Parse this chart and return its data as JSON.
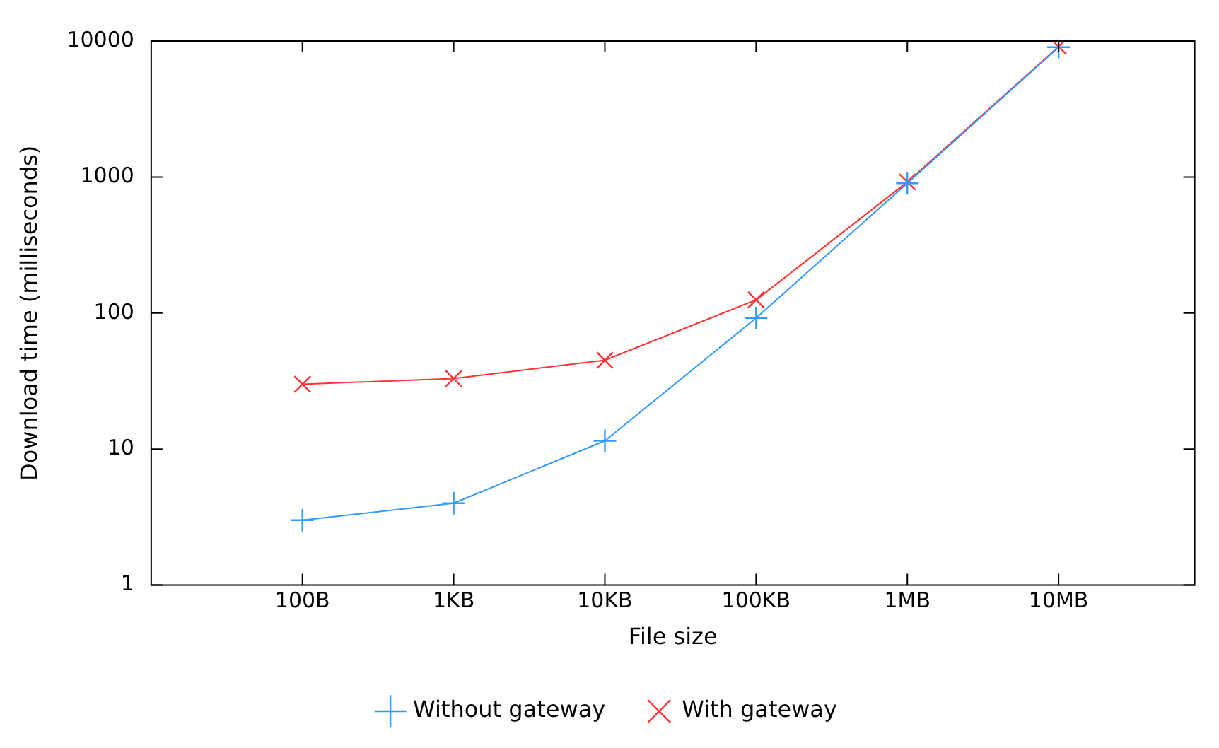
{
  "chart_data": {
    "type": "line",
    "xlabel": "File size",
    "ylabel": "Download time (milliseconds)",
    "categories": [
      "100B",
      "1KB",
      "10KB",
      "100KB",
      "1MB",
      "10MB"
    ],
    "series": [
      {
        "name": "Without gateway",
        "color": "#3399ff",
        "marker": "cross",
        "values": [
          3,
          4,
          11.5,
          92,
          900,
          9000
        ]
      },
      {
        "name": "With gateway",
        "color": "#ff3333",
        "marker": "x",
        "values": [
          30,
          33,
          45,
          125,
          920,
          9100
        ]
      }
    ],
    "log": "y",
    "ylim": [
      1,
      10000
    ],
    "yticks": [
      1,
      10,
      100,
      1000,
      10000
    ],
    "grid": false,
    "legend": "bottom"
  }
}
